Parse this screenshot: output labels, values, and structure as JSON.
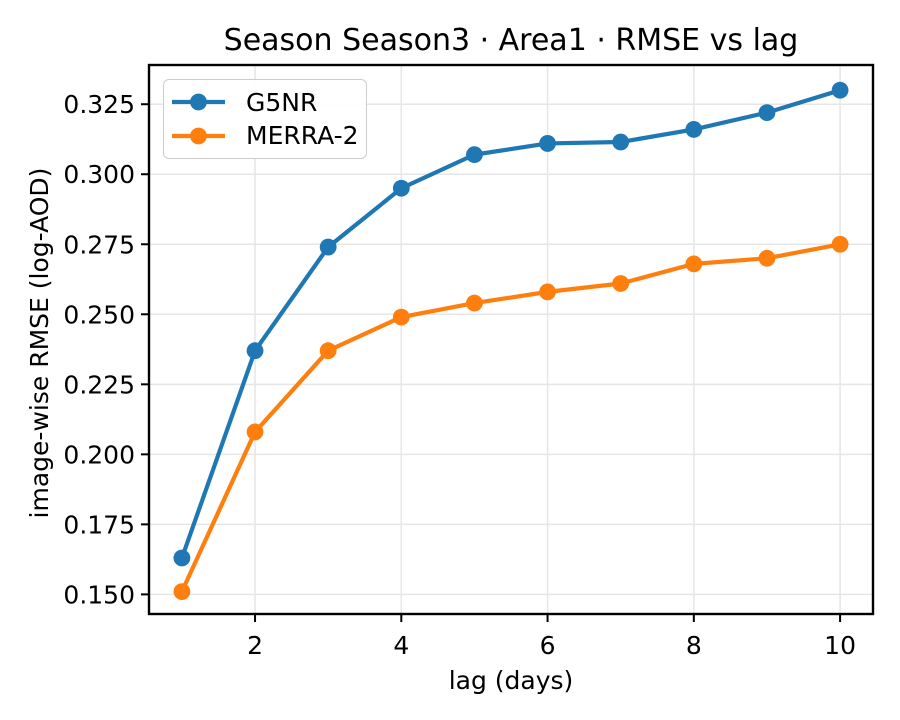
{
  "chart_data": {
    "type": "line",
    "title": "Season Season3 · Area1 · RMSE vs lag",
    "xlabel": "lag (days)",
    "ylabel": "image-wise RMSE (log-AOD)",
    "x": [
      1,
      2,
      3,
      4,
      5,
      6,
      7,
      8,
      9,
      10
    ],
    "series": [
      {
        "name": "G5NR",
        "color": "#1f77b4",
        "values": [
          0.163,
          0.237,
          0.274,
          0.295,
          0.307,
          0.311,
          0.3115,
          0.316,
          0.322,
          0.33
        ]
      },
      {
        "name": "MERRA-2",
        "color": "#ff7f0e",
        "values": [
          0.151,
          0.208,
          0.237,
          0.249,
          0.254,
          0.258,
          0.261,
          0.268,
          0.27,
          0.275
        ]
      }
    ],
    "xlim": [
      0.55,
      10.45
    ],
    "ylim": [
      0.143,
      0.339
    ],
    "xticks": [
      2,
      4,
      6,
      8,
      10
    ],
    "xtick_labels": [
      "2",
      "4",
      "6",
      "8",
      "10"
    ],
    "yticks": [
      0.15,
      0.175,
      0.2,
      0.225,
      0.25,
      0.275,
      0.3,
      0.325
    ],
    "ytick_labels": [
      "0.150",
      "0.175",
      "0.200",
      "0.225",
      "0.250",
      "0.275",
      "0.300",
      "0.325"
    ],
    "grid": true,
    "legend_position": "upper left",
    "marker": "o",
    "colors": {
      "background": "#ffffff",
      "grid": "#e6e6e6",
      "spine": "#000000",
      "text": "#000000",
      "legend_border": "#cccccc"
    }
  }
}
